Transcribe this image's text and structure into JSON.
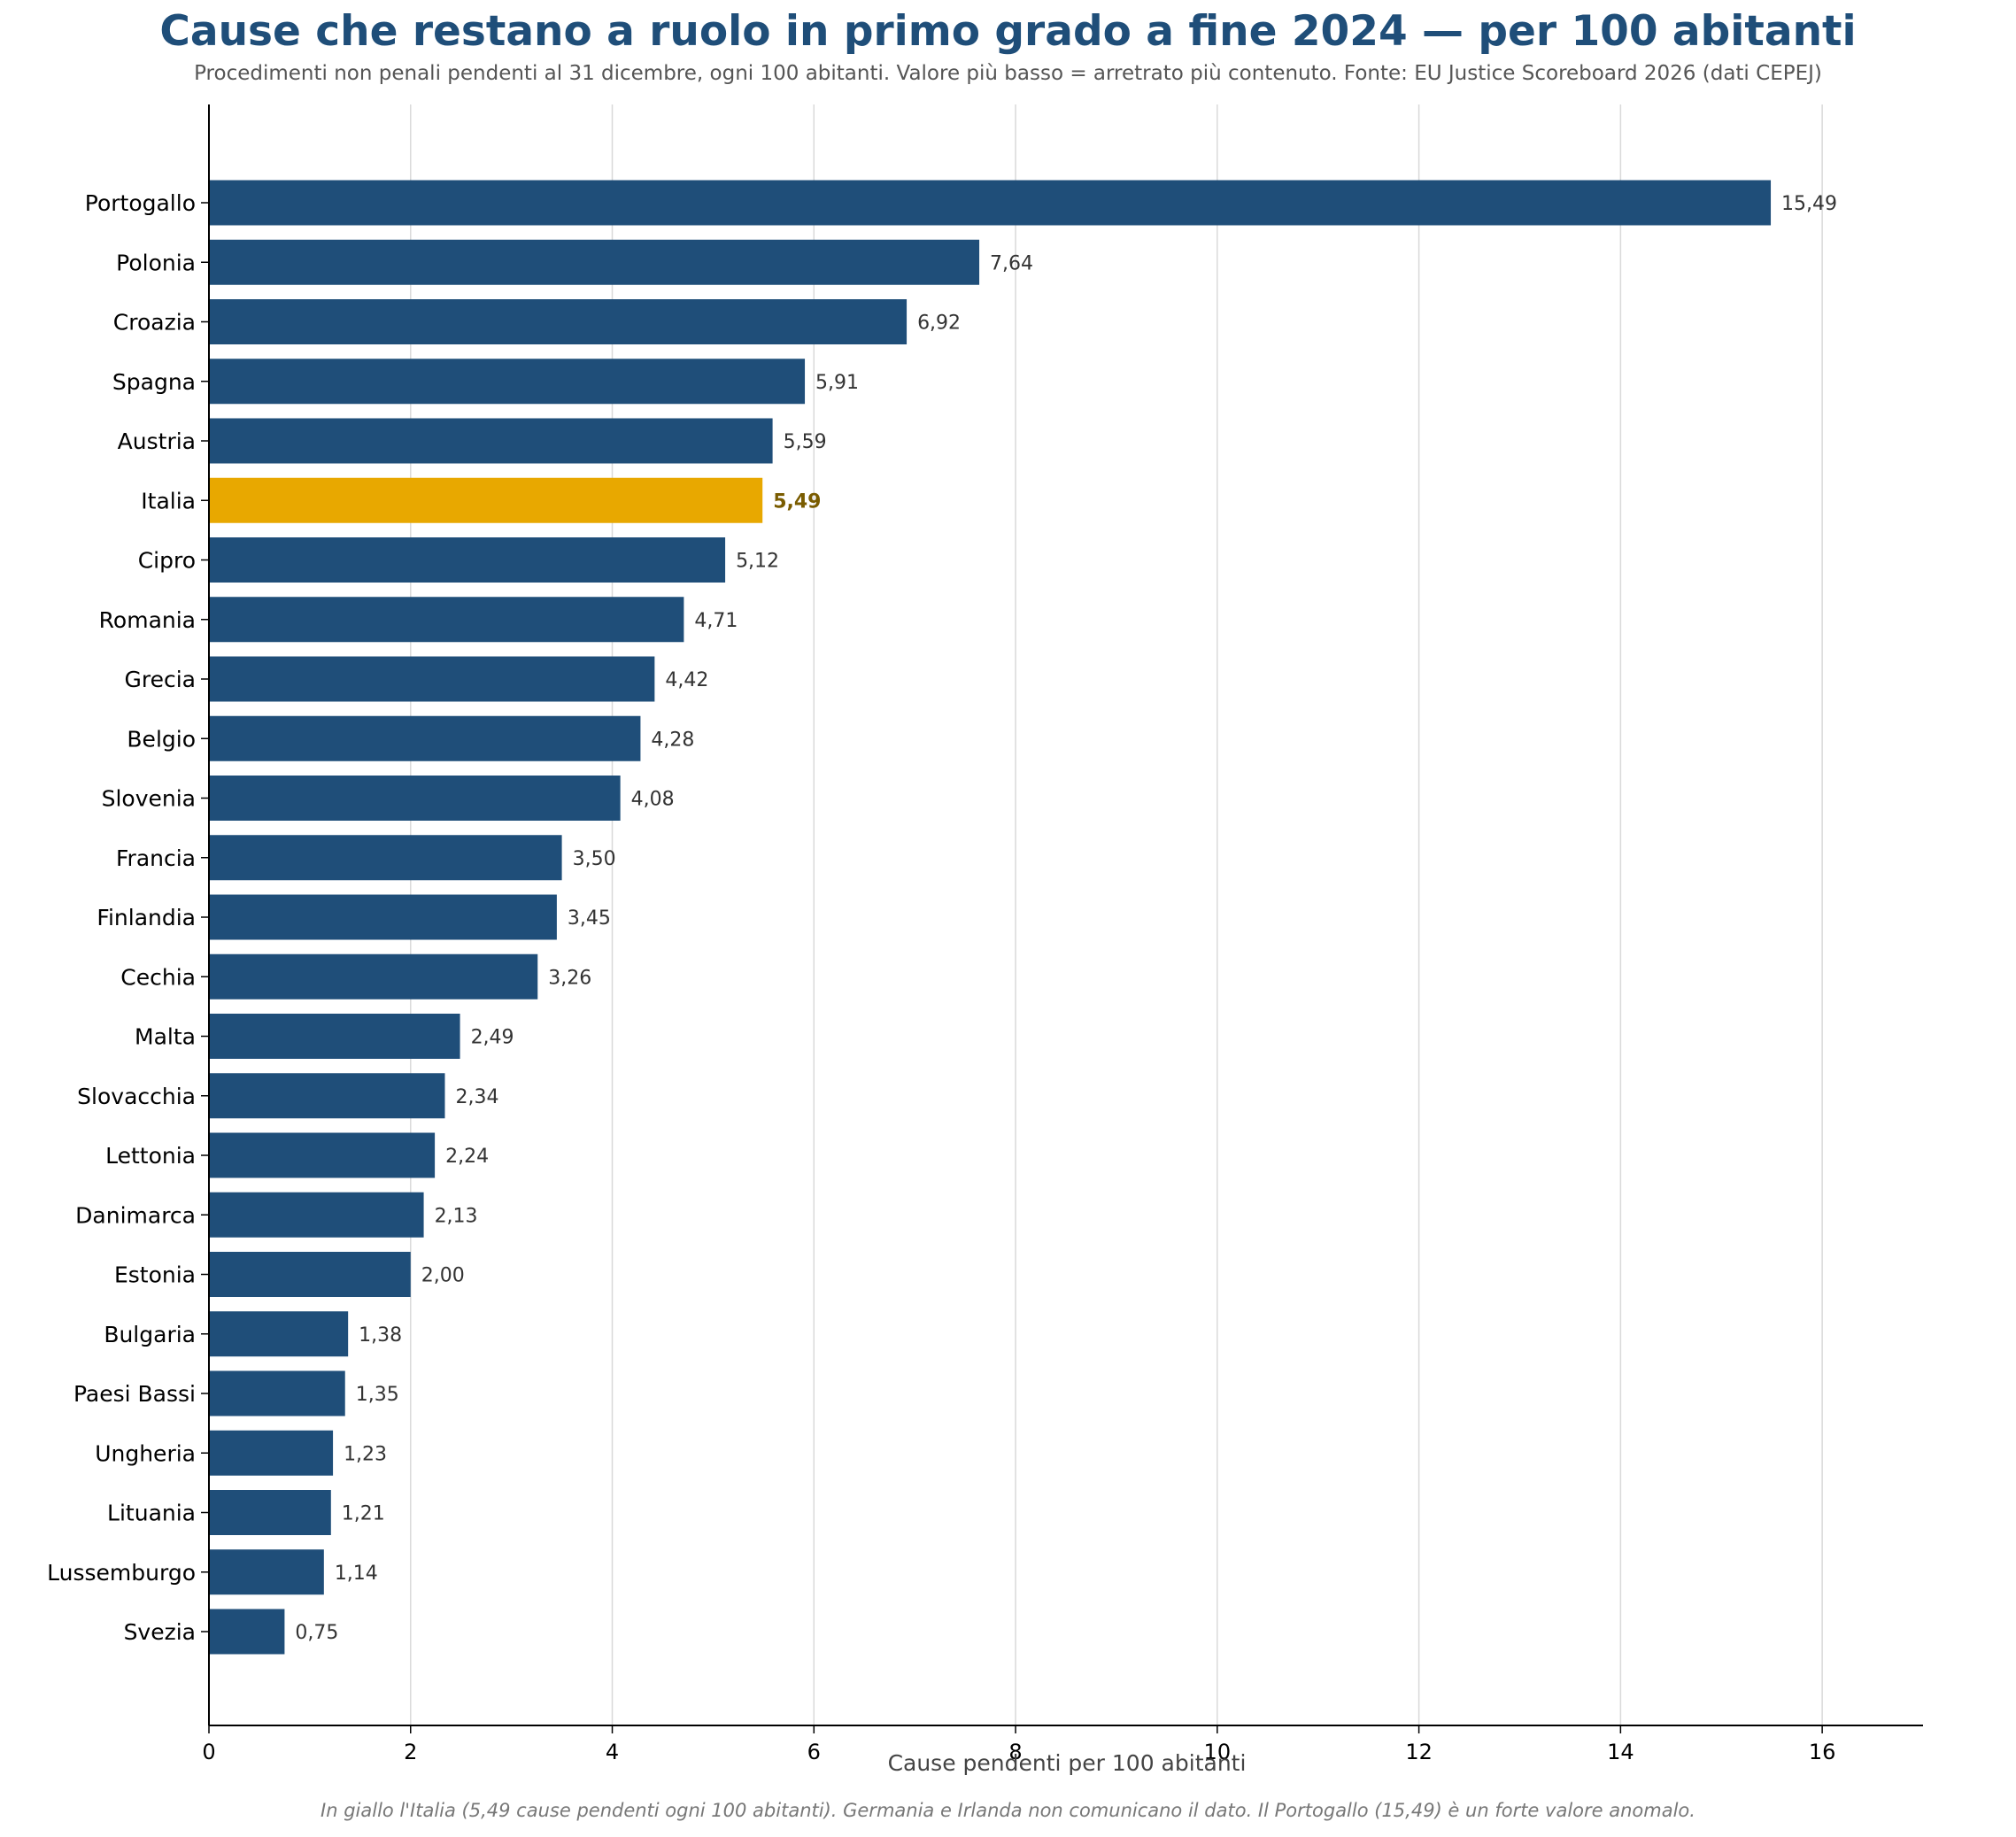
{
  "title": "Cause che restano a ruolo in primo grado a fine 2024 — per 100 abitanti",
  "subtitle": "Procedimenti non penali pendenti al 31 dicembre, ogni 100 abitanti. Valore più basso = arretrato più contenuto. Fonte: EU Justice Scoreboard 2026 (dati CEPEJ)",
  "note": "In giallo l'Italia (5,49 cause pendenti ogni 100 abitanti). Germania e Irlanda non comunicano il dato. Il Portogallo (15,49) è un forte valore anomalo.",
  "colors": {
    "bar": "#1f4e79",
    "highlight": "#e8a800",
    "highlight_label": "#7a5c00",
    "title": "#1f4e79",
    "grid": "#d9d9d9"
  },
  "chart_data": {
    "type": "bar",
    "orientation": "horizontal",
    "xlabel": "Cause pendenti per 100 abitanti",
    "ylabel": "",
    "xlim": [
      0,
      17
    ],
    "xticks": [
      0,
      2,
      4,
      6,
      8,
      10,
      12,
      14,
      16
    ],
    "grid": "vertical",
    "highlight": "Italia",
    "categories": [
      "Portogallo",
      "Polonia",
      "Croazia",
      "Spagna",
      "Austria",
      "Italia",
      "Cipro",
      "Romania",
      "Grecia",
      "Belgio",
      "Slovenia",
      "Francia",
      "Finlandia",
      "Cechia",
      "Malta",
      "Slovacchia",
      "Lettonia",
      "Danimarca",
      "Estonia",
      "Bulgaria",
      "Paesi Bassi",
      "Ungheria",
      "Lituania",
      "Lussemburgo",
      "Svezia"
    ],
    "values": [
      15.49,
      7.64,
      6.92,
      5.91,
      5.59,
      5.49,
      5.12,
      4.71,
      4.42,
      4.28,
      4.08,
      3.5,
      3.45,
      3.26,
      2.49,
      2.34,
      2.24,
      2.13,
      2.0,
      1.38,
      1.35,
      1.23,
      1.21,
      1.14,
      0.75
    ],
    "value_labels": [
      "15,49",
      "7,64",
      "6,92",
      "5,91",
      "5,59",
      "5,49",
      "5,12",
      "4,71",
      "4,42",
      "4,28",
      "4,08",
      "3,50",
      "3,45",
      "3,26",
      "2,49",
      "2,34",
      "2,24",
      "2,13",
      "2,00",
      "1,38",
      "1,35",
      "1,23",
      "1,21",
      "1,14",
      "0,75"
    ]
  }
}
